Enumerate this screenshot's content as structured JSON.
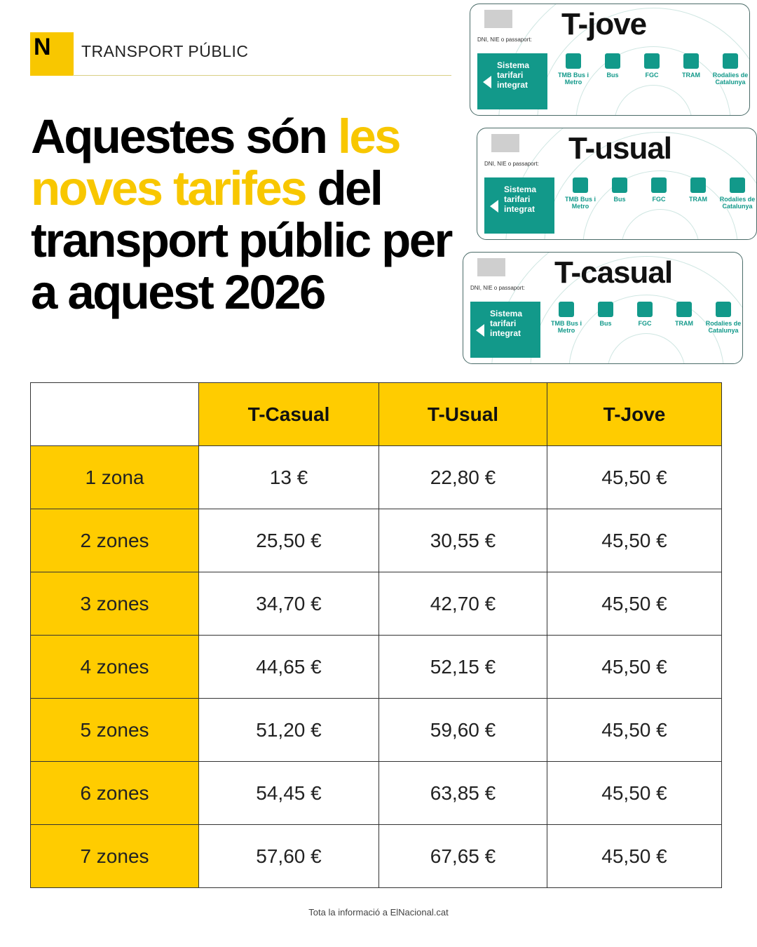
{
  "header": {
    "logo_letter": "N",
    "section": "TRANSPORT PÚBLIC"
  },
  "title": {
    "part1": "Aquestes són ",
    "highlight": "les noves tarifes",
    "part2": " del transport públic per a aquest 2026"
  },
  "cards_image": {
    "cards": [
      "T-jove",
      "T-usual",
      "T-casual"
    ],
    "panel_text": "Sistema tarifari integrat",
    "field_label": "DNI, NIE o passaport:",
    "operators": [
      "TMB Bus i Metro",
      "Bus",
      "FGC",
      "TRAM",
      "Rodalies de Catalunya"
    ],
    "teal": "#12998A"
  },
  "table": {
    "headers": [
      "",
      "T-Casual",
      "T-Usual",
      "T-Jove"
    ],
    "rows": [
      {
        "zone": "1 zona",
        "casual": "13 €",
        "usual": "22,80 €",
        "jove": "45,50 €"
      },
      {
        "zone": "2 zones",
        "casual": "25,50 €",
        "usual": "30,55 €",
        "jove": "45,50 €"
      },
      {
        "zone": "3 zones",
        "casual": "34,70 €",
        "usual": "42,70 €",
        "jove": "45,50 €"
      },
      {
        "zone": "4 zones",
        "casual": "44,65 €",
        "usual": "52,15 €",
        "jove": "45,50 €"
      },
      {
        "zone": "5 zones",
        "casual": "51,20 €",
        "usual": "59,60 €",
        "jove": "45,50 €"
      },
      {
        "zone": "6 zones",
        "casual": "54,45 €",
        "usual": "63,85 €",
        "jove": "45,50 €"
      },
      {
        "zone": "7 zones",
        "casual": "57,60 €",
        "usual": "67,65 €",
        "jove": "45,50 €"
      }
    ]
  },
  "colors": {
    "accent": "#FFCC00",
    "text": "#111111"
  },
  "footer": "Tota la informació a ElNacional.cat"
}
